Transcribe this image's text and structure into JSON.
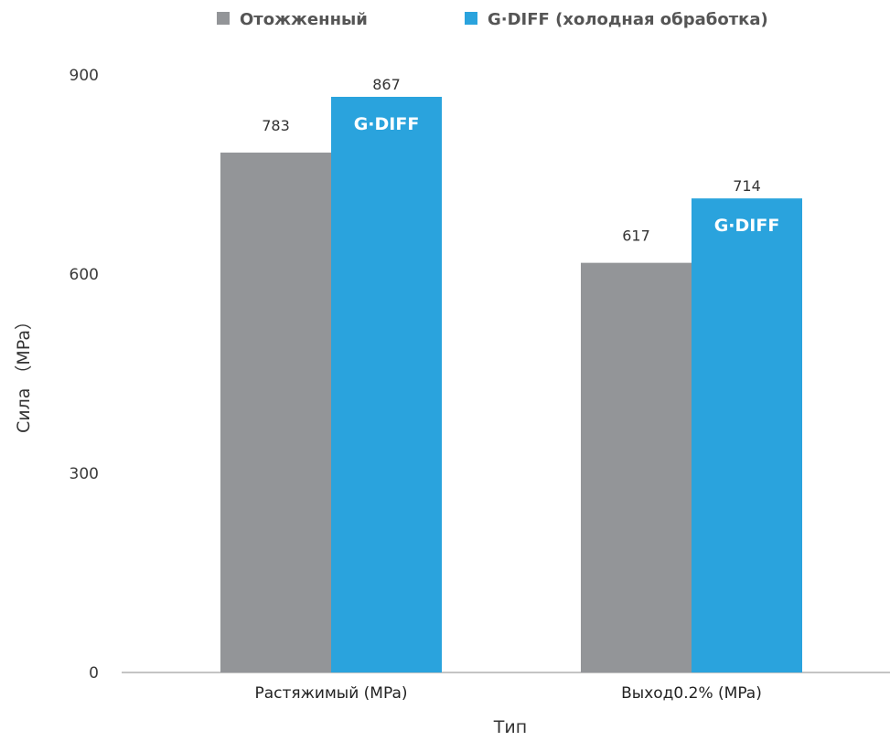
{
  "chart_data": {
    "type": "bar",
    "categories": [
      "Растяжимый (MPa)",
      "Выход0.2% (MPa)"
    ],
    "series": [
      {
        "name": "Отожженный",
        "values": [
          783,
          617
        ],
        "color": "#939598"
      },
      {
        "name": "G·DIFF (холодная обработка)",
        "values": [
          867,
          714
        ],
        "color": "#2aa3dd",
        "bar_label": "G·DIFF"
      }
    ],
    "xlabel": "Тип",
    "ylabel": "Сила （MPa）",
    "ylim": [
      0,
      900
    ],
    "yticks": [
      0,
      300,
      600,
      900
    ],
    "grid": false,
    "legend_position": "top-center"
  }
}
